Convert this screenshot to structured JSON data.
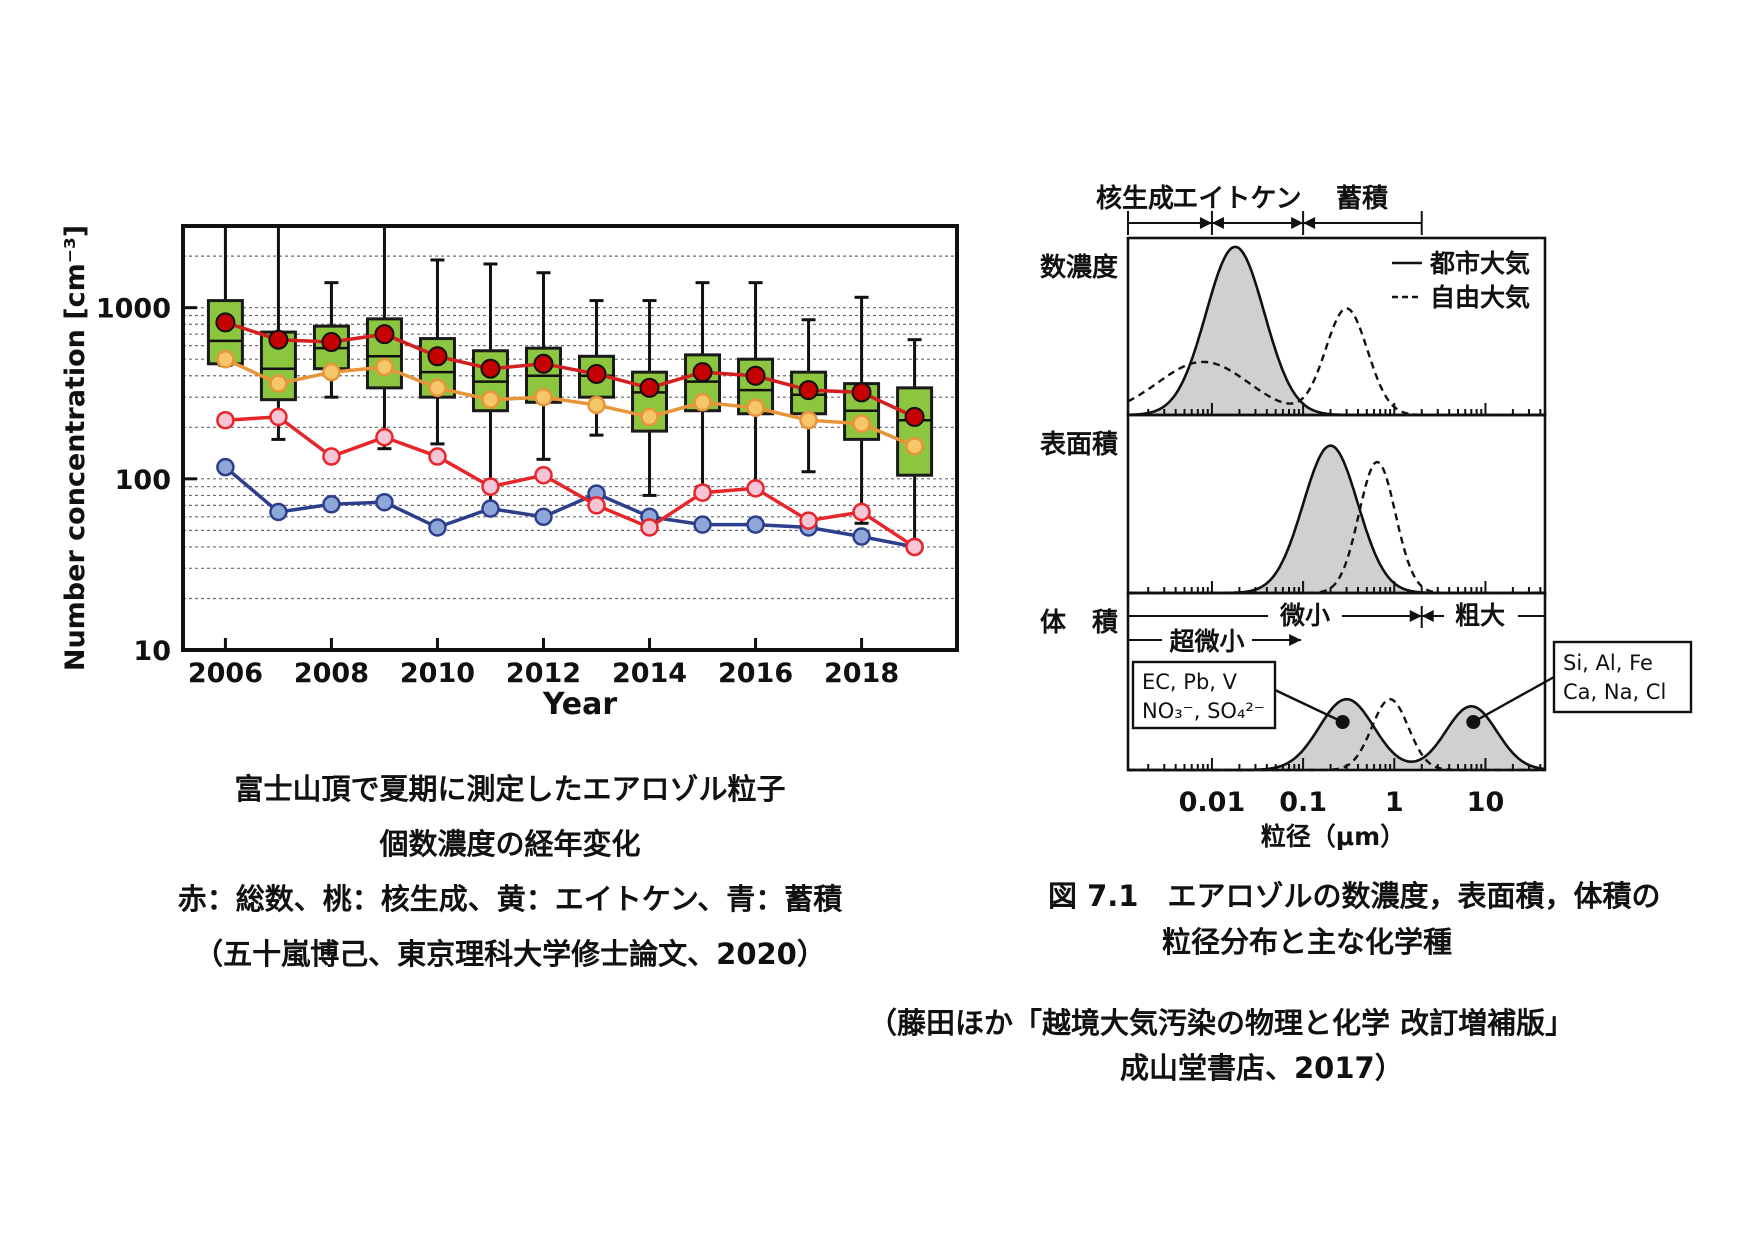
{
  "chart_data": [
    {
      "type": "box-line",
      "ylabel": "Number concentration [cm⁻³]",
      "xlabel": "Year",
      "yscale": "log",
      "ylim": [
        10,
        3000
      ],
      "xlim": [
        2005.2,
        2019.8
      ],
      "y_ticks": [
        10,
        100,
        1000
      ],
      "y_tick_labels": [
        "10",
        "100",
        "1000"
      ],
      "x_ticks": [
        2006,
        2008,
        2010,
        2012,
        2014,
        2016,
        2018
      ],
      "x_tick_labels": [
        "2006",
        "2008",
        "2010",
        "2012",
        "2014",
        "2016",
        "2018"
      ],
      "grid": true,
      "boxes": [
        {
          "x": 2006,
          "whisker_low": 460,
          "q1": 470,
          "median": 640,
          "q3": 1100,
          "whisker_high": 3000
        },
        {
          "x": 2007,
          "whisker_low": 170,
          "q1": 290,
          "median": 440,
          "q3": 720,
          "whisker_high": 3000
        },
        {
          "x": 2008,
          "whisker_low": 300,
          "q1": 440,
          "median": 580,
          "q3": 780,
          "whisker_high": 1400
        },
        {
          "x": 2009,
          "whisker_low": 150,
          "q1": 340,
          "median": 520,
          "q3": 860,
          "whisker_high": 3000
        },
        {
          "x": 2010,
          "whisker_low": 160,
          "q1": 300,
          "median": 420,
          "q3": 660,
          "whisker_high": 1900
        },
        {
          "x": 2011,
          "whisker_low": 70,
          "q1": 250,
          "median": 370,
          "q3": 560,
          "whisker_high": 1800
        },
        {
          "x": 2012,
          "whisker_low": 130,
          "q1": 280,
          "median": 400,
          "q3": 580,
          "whisker_high": 1600
        },
        {
          "x": 2013,
          "whisker_low": 180,
          "q1": 300,
          "median": 400,
          "q3": 520,
          "whisker_high": 1100
        },
        {
          "x": 2014,
          "whisker_low": 80,
          "q1": 190,
          "median": 320,
          "q3": 420,
          "whisker_high": 1100
        },
        {
          "x": 2015,
          "whisker_low": 90,
          "q1": 250,
          "median": 370,
          "q3": 530,
          "whisker_high": 1400
        },
        {
          "x": 2016,
          "whisker_low": 85,
          "q1": 240,
          "median": 330,
          "q3": 500,
          "whisker_high": 1400
        },
        {
          "x": 2017,
          "whisker_low": 110,
          "q1": 240,
          "median": 310,
          "q3": 420,
          "whisker_high": 850
        },
        {
          "x": 2018,
          "whisker_low": 55,
          "q1": 170,
          "median": 250,
          "q3": 360,
          "whisker_high": 1150
        },
        {
          "x": 2019,
          "whisker_low": 40,
          "q1": 105,
          "median": 220,
          "q3": 340,
          "whisker_high": 650
        }
      ],
      "series": [
        {
          "name": "総数",
          "color": "#d41f1f",
          "fill": "#c40000",
          "stroke": "#e02020",
          "x": [
            2006,
            2007,
            2008,
            2009,
            2010,
            2011,
            2012,
            2013,
            2014,
            2015,
            2016,
            2017,
            2018,
            2019
          ],
          "values": [
            820,
            650,
            630,
            700,
            520,
            440,
            470,
            410,
            340,
            420,
            400,
            330,
            320,
            230
          ]
        },
        {
          "name": "核生成",
          "color": "#e8262a",
          "fill": "#f7c6d6",
          "stroke": "#e8262a",
          "x": [
            2006,
            2007,
            2008,
            2009,
            2010,
            2011,
            2012,
            2013,
            2014,
            2015,
            2016,
            2017,
            2018,
            2019
          ],
          "values": [
            220,
            230,
            135,
            175,
            135,
            90,
            105,
            70,
            52,
            83,
            88,
            57,
            64,
            40
          ]
        },
        {
          "name": "エイトケン",
          "color": "#e8953a",
          "fill": "#f6c66b",
          "stroke": "#e8953a",
          "x": [
            2006,
            2007,
            2008,
            2009,
            2010,
            2011,
            2012,
            2013,
            2014,
            2015,
            2016,
            2017,
            2018,
            2019
          ],
          "values": [
            500,
            360,
            420,
            450,
            340,
            290,
            300,
            270,
            230,
            280,
            260,
            220,
            210,
            155
          ]
        },
        {
          "name": "蓄積",
          "color": "#2c3e8c",
          "fill": "#8fa6d8",
          "stroke": "#2c3e8c",
          "x": [
            2006,
            2007,
            2008,
            2009,
            2010,
            2011,
            2012,
            2013,
            2014,
            2015,
            2016,
            2017,
            2018,
            2019
          ],
          "values": [
            117,
            64,
            71,
            73,
            52,
            67,
            60,
            82,
            60,
            54,
            54,
            52,
            46,
            40
          ]
        }
      ]
    },
    {
      "type": "area",
      "title": "図 7.1　エアロゾルの数濃度，表面積，体積の粒径分布と主な化学種",
      "xlabel": "粒径（μm）",
      "xscale": "log",
      "xlim": [
        0.0012,
        45
      ],
      "x_ticks": [
        0.01,
        0.1,
        1,
        10
      ],
      "x_tick_labels": [
        "0.01",
        "0.1",
        "1",
        "10"
      ],
      "legend": [
        "都市大気",
        "自由大気"
      ],
      "legend_position": "top-right",
      "panels": [
        {
          "label": "数濃度",
          "series": [
            {
              "name": "都市大気",
              "style": "solid-filled",
              "modes": [
                {
                  "center": 0.018,
                  "width_log10": 0.32,
                  "height": 0.95
                }
              ]
            },
            {
              "name": "自由大気",
              "style": "dashed",
              "modes": [
                {
                  "center": 0.008,
                  "width_log10": 0.5,
                  "height": 0.3
                },
                {
                  "center": 0.3,
                  "width_log10": 0.23,
                  "height": 0.6
                }
              ]
            }
          ]
        },
        {
          "label": "表面積",
          "series": [
            {
              "name": "都市大気",
              "style": "solid-filled",
              "modes": [
                {
                  "center": 0.2,
                  "width_log10": 0.3,
                  "height": 0.9
                }
              ]
            },
            {
              "name": "自由大気",
              "style": "dashed",
              "modes": [
                {
                  "center": 0.65,
                  "width_log10": 0.2,
                  "height": 0.8
                }
              ]
            }
          ]
        },
        {
          "label": "体　積",
          "series": [
            {
              "name": "都市大気",
              "style": "solid-filled",
              "modes": [
                {
                  "center": 0.3,
                  "width_log10": 0.3,
                  "height": 0.8
                },
                {
                  "center": 7,
                  "width_log10": 0.28,
                  "height": 0.72
                }
              ]
            },
            {
              "name": "自由大気",
              "style": "dashed",
              "modes": [
                {
                  "center": 0.9,
                  "width_log10": 0.2,
                  "height": 0.8
                }
              ]
            }
          ],
          "regions": [
            {
              "label": "超微小",
              "from": 0.0012,
              "to": 0.1
            },
            {
              "label": "微小",
              "from": 0.0012,
              "to": 2
            },
            {
              "label": "粗大",
              "from": 2,
              "to": 45
            }
          ],
          "annotations": [
            {
              "text_lines": [
                "EC, Pb, V",
                "NO₃⁻, SO₄²⁻"
              ],
              "target_x": 0.3
            },
            {
              "text_lines": [
                "Si, Al, Fe",
                "Ca, Na, Cl"
              ],
              "target_x": 7
            }
          ]
        }
      ],
      "top_ranges": [
        {
          "label": "核生成",
          "from": 0.0012,
          "to": 0.01
        },
        {
          "label": "エイトケン",
          "from": 0.01,
          "to": 0.1
        },
        {
          "label": "蓄積",
          "from": 0.1,
          "to": 2
        }
      ]
    }
  ],
  "captions": {
    "left_line1": "富士山頂で夏期に測定したエアロゾル粒子",
    "left_line2": "個数濃度の経年変化",
    "left_line3": "赤：総数、桃：核生成、黄：エイトケン、青：蓄積",
    "left_line4": "（五十嵐博己、東京理科大学修士論文、2020）",
    "right_fig": "図 7.1　エアロゾルの数濃度，表面積，体積の",
    "right_fig2": "粒径分布と主な化学種",
    "source1": "（藤田ほか「越境大気汚染の物理と化学 改訂増補版」",
    "source2": "成山堂書店、2017）"
  },
  "colors": {
    "box_fill": "#8cc63f",
    "box_edge": "#1a1a1a",
    "area_fill": "#d0d0d0"
  }
}
